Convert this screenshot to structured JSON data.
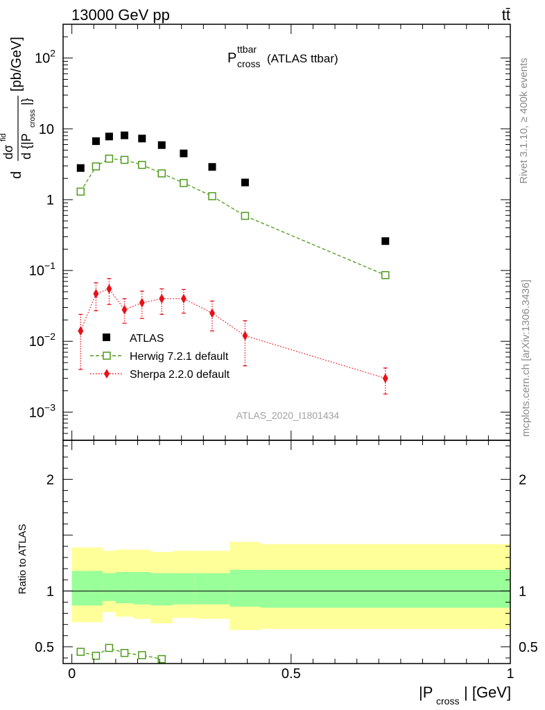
{
  "header": {
    "energy_label": "13000 GeV pp",
    "process_label": "tt̄"
  },
  "side_labels": {
    "rivet": "Rivet 3.1.10, ≥ 400k events",
    "mcplots": "mcplots.cern.ch [arXiv:1306.3436]"
  },
  "colors": {
    "atlas": "#000000",
    "herwig": "#4d9a1a",
    "sherpa": "#e8111a",
    "band_inner": "#99ff99",
    "band_outer": "#ffff99",
    "watermark": "#a0a0a0"
  },
  "chart_data": [
    {
      "type": "scatter",
      "panel": "main",
      "title_main": "P",
      "title_sup": "ttbar",
      "title_sub": "cross",
      "title_suffix": "(ATLAS ttbar)",
      "ylabel": "dσ^fid / d{|P_cross|} [pb/GeV]",
      "ylabel_parts": {
        "d1": "d",
        "frac_num": "dσ",
        "frac_num_sup": "fid",
        "frac_den_pre": "d {|P",
        "frac_den_sub": "cross",
        "frac_den_post": "|}",
        "units": "[pb/GeV]"
      },
      "yscale": "log",
      "ylim": [
        0.0004,
        300
      ],
      "xlim": [
        -0.02,
        1.0
      ],
      "y_ticks": [
        {
          "value": 0.001,
          "base": "10",
          "exp": "−3"
        },
        {
          "value": 0.01,
          "base": "10",
          "exp": "−2"
        },
        {
          "value": 0.1,
          "base": "10",
          "exp": "−1"
        },
        {
          "value": 1,
          "base": "1",
          "exp": ""
        },
        {
          "value": 10,
          "base": "10",
          "exp": ""
        },
        {
          "value": 100,
          "base": "10",
          "exp": "2"
        }
      ],
      "legend_position": "center-left",
      "watermark": "ATLAS_2020_I1801434",
      "series": [
        {
          "name": "ATLAS",
          "marker": "filled-square",
          "x": [
            0.02,
            0.055,
            0.085,
            0.12,
            0.16,
            0.205,
            0.255,
            0.32,
            0.395,
            0.715
          ],
          "y": [
            2.8,
            6.7,
            7.8,
            8.1,
            7.3,
            5.9,
            4.5,
            2.9,
            1.75,
            0.26
          ]
        },
        {
          "name": "Herwig 7.2.1 default",
          "marker": "open-square",
          "line": "dashed",
          "x": [
            0.02,
            0.055,
            0.085,
            0.12,
            0.16,
            0.205,
            0.255,
            0.32,
            0.395,
            0.715
          ],
          "y": [
            1.3,
            2.95,
            3.8,
            3.65,
            3.1,
            2.35,
            1.72,
            1.12,
            0.59,
            0.086
          ],
          "yerr_lo": [
            0.05,
            0.1,
            0.1,
            0.1,
            0.1,
            0.08,
            0.06,
            0.04,
            0.02,
            0.004
          ],
          "yerr_hi": [
            0.05,
            0.1,
            0.1,
            0.1,
            0.1,
            0.08,
            0.06,
            0.04,
            0.02,
            0.004
          ]
        },
        {
          "name": "Sherpa 2.2.0 default",
          "marker": "filled-diamond",
          "line": "dotted",
          "x": [
            0.02,
            0.055,
            0.085,
            0.12,
            0.16,
            0.205,
            0.255,
            0.32,
            0.395,
            0.715
          ],
          "y": [
            0.014,
            0.047,
            0.055,
            0.028,
            0.035,
            0.04,
            0.04,
            0.025,
            0.012,
            0.003
          ],
          "yerr_lo": [
            0.01,
            0.02,
            0.022,
            0.01,
            0.014,
            0.016,
            0.015,
            0.011,
            0.0075,
            0.0012
          ],
          "yerr_hi": [
            0.01,
            0.02,
            0.022,
            0.012,
            0.016,
            0.015,
            0.014,
            0.012,
            0.0075,
            0.0012
          ]
        }
      ]
    },
    {
      "type": "scatter",
      "panel": "ratio",
      "ylabel": "Ratio to ATLAS",
      "xlabel": "|P_cross| [GeV]",
      "xlabel_parts": {
        "pre": "|P",
        "sub": "cross",
        "post": "| [GeV]"
      },
      "yscale": "linear",
      "ylim": [
        0.35,
        2.35
      ],
      "xlim": [
        -0.02,
        1.0
      ],
      "y_ticks": [
        0.5,
        1,
        2
      ],
      "x_ticks": [
        0,
        0.5,
        1
      ],
      "x_tick_labels": [
        "0",
        "0.5",
        "1"
      ],
      "bins": [
        {
          "lo": 0.0,
          "hi": 0.04,
          "inner": [
            0.87,
            1.18
          ],
          "outer": [
            0.72,
            1.39
          ]
        },
        {
          "lo": 0.04,
          "hi": 0.07,
          "inner": [
            0.87,
            1.18
          ],
          "outer": [
            0.72,
            1.39
          ]
        },
        {
          "lo": 0.07,
          "hi": 0.1,
          "inner": [
            0.91,
            1.16
          ],
          "outer": [
            0.81,
            1.36
          ]
        },
        {
          "lo": 0.1,
          "hi": 0.14,
          "inner": [
            0.89,
            1.17
          ],
          "outer": [
            0.77,
            1.37
          ]
        },
        {
          "lo": 0.14,
          "hi": 0.18,
          "inner": [
            0.88,
            1.17
          ],
          "outer": [
            0.75,
            1.37
          ]
        },
        {
          "lo": 0.18,
          "hi": 0.23,
          "inner": [
            0.87,
            1.16
          ],
          "outer": [
            0.71,
            1.35
          ]
        },
        {
          "lo": 0.23,
          "hi": 0.28,
          "inner": [
            0.88,
            1.16
          ],
          "outer": [
            0.76,
            1.36
          ]
        },
        {
          "lo": 0.28,
          "hi": 0.36,
          "inner": [
            0.88,
            1.16
          ],
          "outer": [
            0.75,
            1.36
          ]
        },
        {
          "lo": 0.36,
          "hi": 0.43,
          "inner": [
            0.86,
            1.19
          ],
          "outer": [
            0.65,
            1.44
          ]
        },
        {
          "lo": 0.43,
          "hi": 1.0,
          "inner": [
            0.85,
            1.19
          ],
          "outer": [
            0.66,
            1.42
          ]
        }
      ],
      "series": [
        {
          "name": "Herwig 7.2.1 default",
          "marker": "open-square",
          "line": "dashed",
          "x": [
            0.02,
            0.055,
            0.085,
            0.12,
            0.16,
            0.205
          ],
          "y": [
            0.455,
            0.42,
            0.49,
            0.445,
            0.425,
            0.39
          ],
          "yerr": [
            0.03,
            0.025,
            0.02,
            0.015,
            0.015,
            0.012
          ]
        }
      ]
    }
  ]
}
